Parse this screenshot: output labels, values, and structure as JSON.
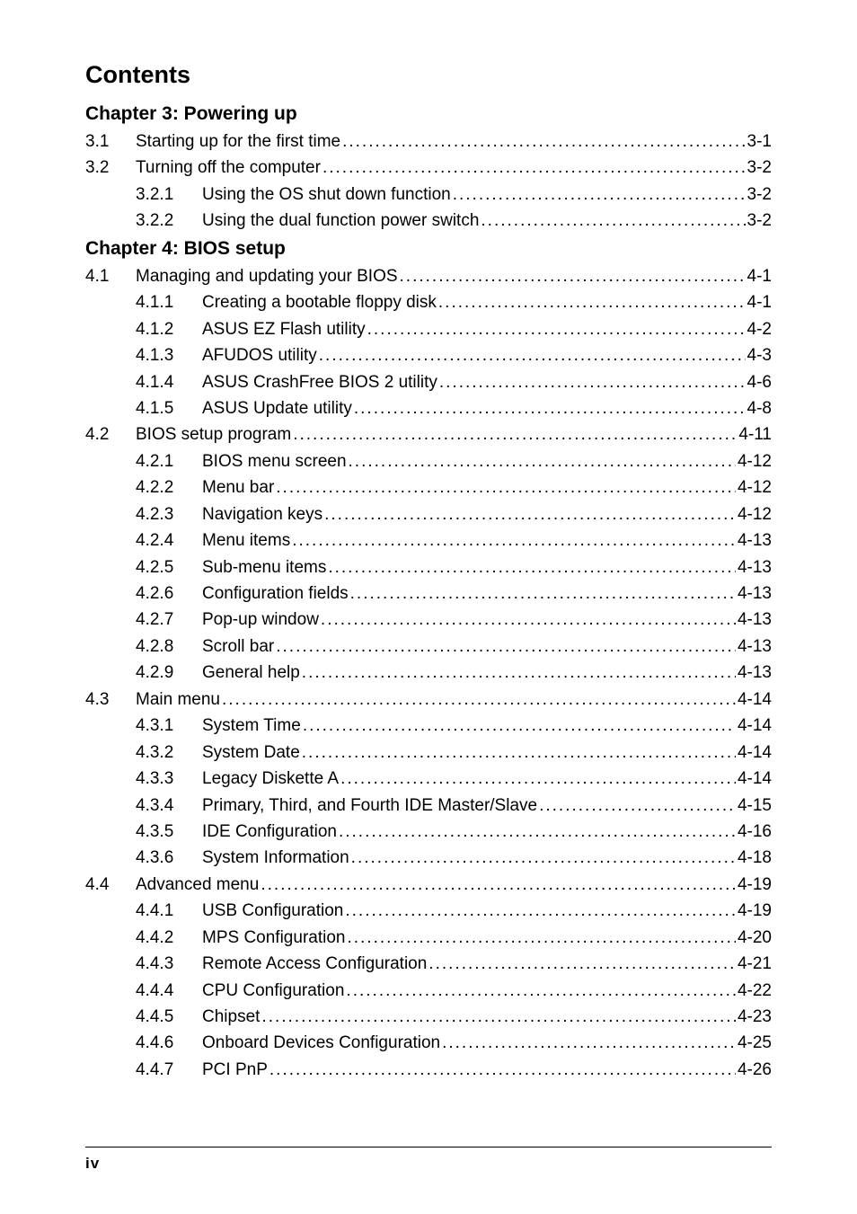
{
  "page_title": "Contents",
  "footer": "iv",
  "chapters": [
    {
      "heading": "Chapter 3: Powering up",
      "entries": [
        {
          "level": 0,
          "num": "3.1",
          "title": "Starting up for the first time",
          "page": "3-1"
        },
        {
          "level": 0,
          "num": "3.2",
          "title": "Turning off the computer",
          "page": "3-2"
        },
        {
          "level": 1,
          "num": "3.2.1",
          "title": "Using the OS shut down function",
          "page": "3-2"
        },
        {
          "level": 1,
          "num": "3.2.2",
          "title": "Using the dual function power switch",
          "page": "3-2"
        }
      ]
    },
    {
      "heading": "Chapter 4: BIOS setup",
      "entries": [
        {
          "level": 0,
          "num": "4.1",
          "title": "Managing and updating your BIOS",
          "page": "4-1"
        },
        {
          "level": 1,
          "num": "4.1.1",
          "title": "Creating a bootable floppy disk",
          "page": "4-1"
        },
        {
          "level": 1,
          "num": "4.1.2",
          "title": "ASUS EZ Flash utility",
          "page": "4-2"
        },
        {
          "level": 1,
          "num": "4.1.3",
          "title": "AFUDOS utility",
          "page": "4-3"
        },
        {
          "level": 1,
          "num": "4.1.4",
          "title": "ASUS CrashFree BIOS 2 utility",
          "page": "4-6"
        },
        {
          "level": 1,
          "num": "4.1.5",
          "title": "ASUS Update utility",
          "page": "4-8"
        },
        {
          "level": 0,
          "num": "4.2",
          "title": "BIOS setup program",
          "page": "4-11"
        },
        {
          "level": 1,
          "num": "4.2.1",
          "title": "BIOS menu screen",
          "page": "4-12"
        },
        {
          "level": 1,
          "num": "4.2.2",
          "title": "Menu bar",
          "page": "4-12"
        },
        {
          "level": 1,
          "num": "4.2.3",
          "title": "Navigation keys",
          "page": "4-12"
        },
        {
          "level": 1,
          "num": "4.2.4",
          "title": "Menu items",
          "page": "4-13"
        },
        {
          "level": 1,
          "num": "4.2.5",
          "title": "Sub-menu items",
          "page": "4-13"
        },
        {
          "level": 1,
          "num": "4.2.6",
          "title": "Configuration fields",
          "page": "4-13"
        },
        {
          "level": 1,
          "num": "4.2.7",
          "title": "Pop-up window",
          "page": "4-13"
        },
        {
          "level": 1,
          "num": "4.2.8",
          "title": "Scroll bar",
          "page": "4-13"
        },
        {
          "level": 1,
          "num": "4.2.9",
          "title": "General help",
          "page": "4-13"
        },
        {
          "level": 0,
          "num": "4.3",
          "title": "Main menu",
          "page": "4-14"
        },
        {
          "level": 1,
          "num": "4.3.1",
          "title": "System Time",
          "page": "4-14"
        },
        {
          "level": 1,
          "num": "4.3.2",
          "title": "System Date",
          "page": "4-14"
        },
        {
          "level": 1,
          "num": "4.3.3",
          "title": "Legacy Diskette A",
          "page": "4-14"
        },
        {
          "level": 1,
          "num": "4.3.4",
          "title": "Primary, Third, and Fourth IDE Master/Slave",
          "page": "4-15"
        },
        {
          "level": 1,
          "num": "4.3.5",
          "title": "IDE Configuration",
          "page": "4-16"
        },
        {
          "level": 1,
          "num": "4.3.6",
          "title": "System Information",
          "page": "4-18"
        },
        {
          "level": 0,
          "num": "4.4",
          "title": "Advanced menu",
          "page": "4-19"
        },
        {
          "level": 1,
          "num": "4.4.1",
          "title": "USB Configuration",
          "page": "4-19"
        },
        {
          "level": 1,
          "num": "4.4.2",
          "title": "MPS Configuration",
          "page": "4-20"
        },
        {
          "level": 1,
          "num": "4.4.3",
          "title": "Remote Access Configuration",
          "page": "4-21"
        },
        {
          "level": 1,
          "num": "4.4.4",
          "title": "CPU Configuration",
          "page": "4-22"
        },
        {
          "level": 1,
          "num": "4.4.5",
          "title": "Chipset",
          "page": "4-23"
        },
        {
          "level": 1,
          "num": "4.4.6",
          "title": "Onboard Devices Configuration",
          "page": "4-25"
        },
        {
          "level": 1,
          "num": "4.4.7",
          "title": "PCI PnP",
          "page": "4-26"
        }
      ]
    }
  ]
}
